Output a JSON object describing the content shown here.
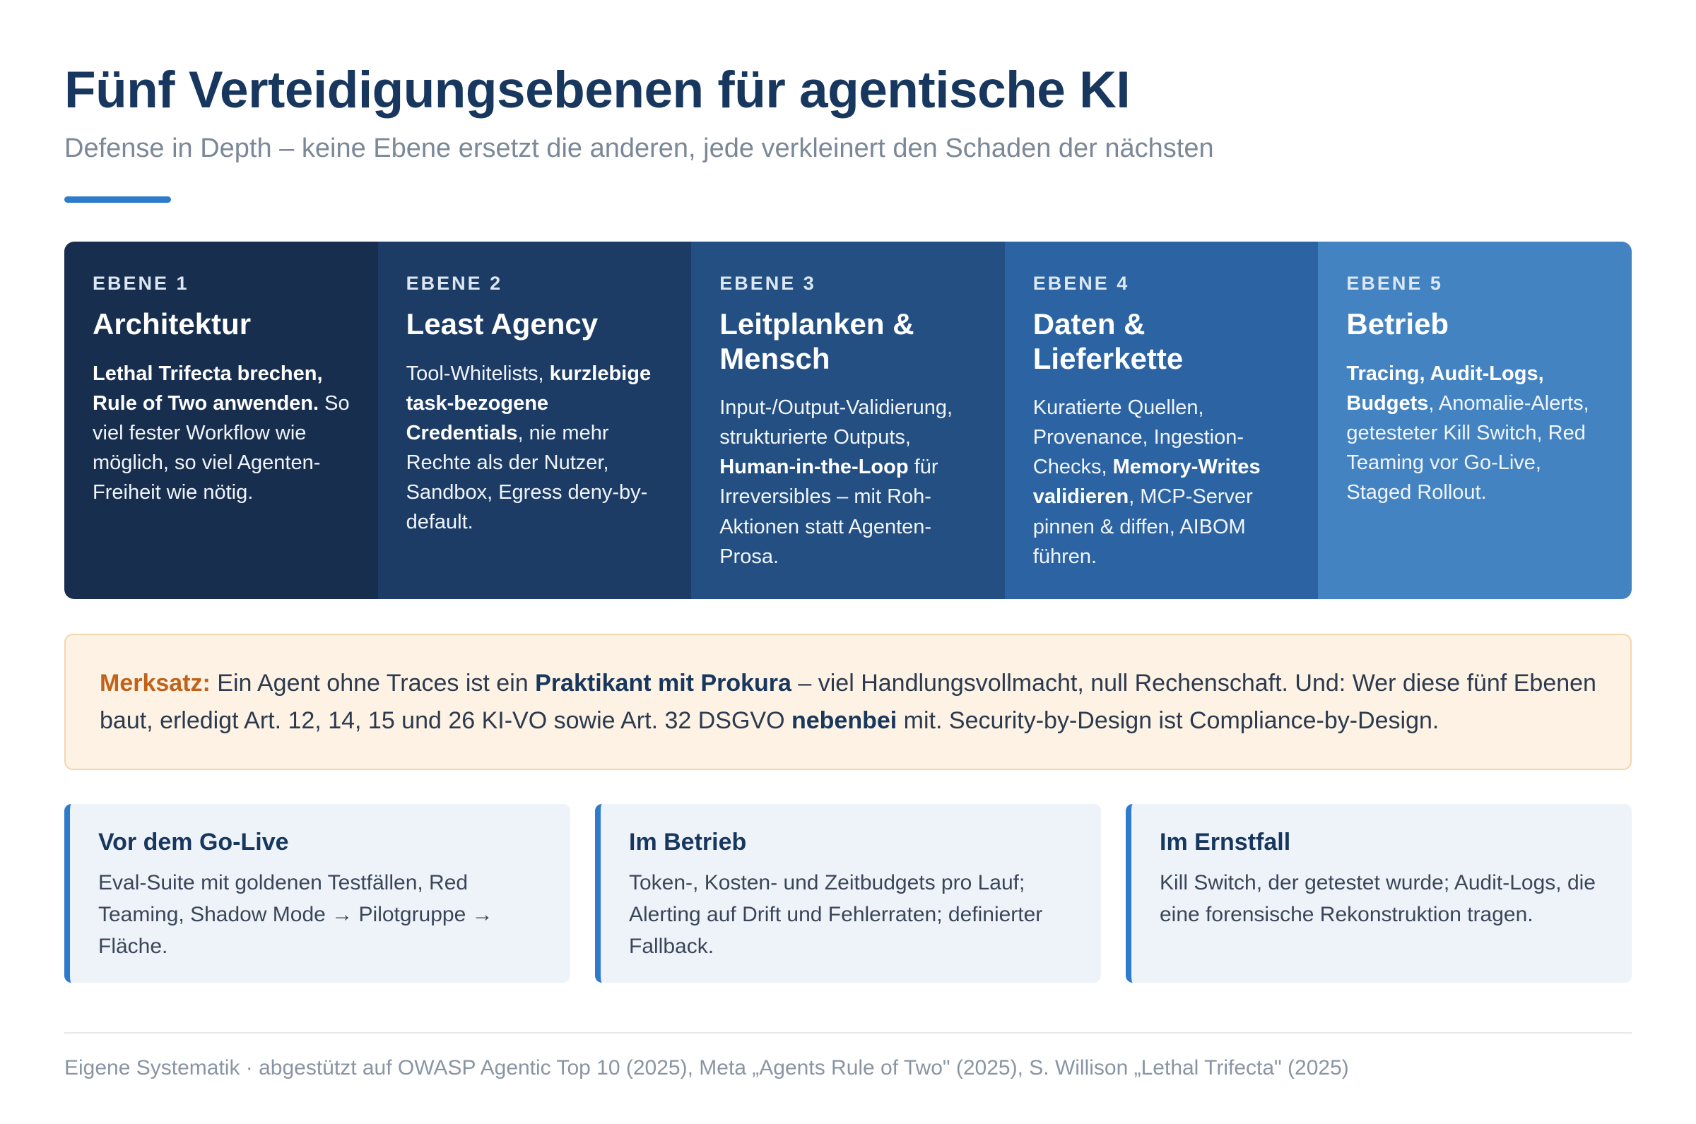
{
  "header": {
    "title": "Fünf Verteidigungsebenen für agentische KI",
    "subtitle": "Defense in Depth – keine Ebene ersetzt die anderen, jede verkleinert den Schaden der nächsten"
  },
  "layers": [
    {
      "kicker": "EBENE 1",
      "title": "Architektur",
      "text": [
        {
          "t": "Lethal Trifecta brechen, Rule of Two anwenden.",
          "b": true
        },
        {
          "t": " So viel fester Workflow wie möglich, so viel Agenten-Freiheit wie nötig.",
          "b": false
        }
      ]
    },
    {
      "kicker": "EBENE 2",
      "title": "Least Agency",
      "text": [
        {
          "t": "Tool-Whitelists, ",
          "b": false
        },
        {
          "t": "kurzlebige task-bezogene Credentials",
          "b": true
        },
        {
          "t": ", nie mehr Rechte als der Nutzer, Sandbox, Egress deny-by-default.",
          "b": false
        }
      ]
    },
    {
      "kicker": "EBENE 3",
      "title": "Leitplanken & Mensch",
      "text": [
        {
          "t": "Input-/Output-Validierung, strukturierte Outputs, ",
          "b": false
        },
        {
          "t": "Human-in-the-Loop",
          "b": true
        },
        {
          "t": " für Irreversibles – mit Roh-Aktionen statt Agenten-Prosa.",
          "b": false
        }
      ]
    },
    {
      "kicker": "EBENE 4",
      "title": "Daten & Lieferkette",
      "text": [
        {
          "t": "Kuratierte Quellen, Provenance, Ingestion-Checks, ",
          "b": false
        },
        {
          "t": "Memory-Writes validieren",
          "b": true
        },
        {
          "t": ", MCP-Server pinnen & diffen, AIBOM führen.",
          "b": false
        }
      ]
    },
    {
      "kicker": "EBENE 5",
      "title": "Betrieb",
      "text": [
        {
          "t": "Tracing, Audit-Logs, Budgets",
          "b": true
        },
        {
          "t": ", Anomalie-Alerts, getesteter Kill Switch, Red Teaming vor Go-Live, Staged Rollout.",
          "b": false
        }
      ]
    }
  ],
  "merksatz": {
    "lead": "Merksatz:",
    "parts": [
      {
        "t": " Ein Agent ohne Traces ist ein ",
        "b": false
      },
      {
        "t": "Praktikant mit Prokura",
        "b": true
      },
      {
        "t": " – viel Handlungsvollmacht, null Rechenschaft. Und: Wer diese fünf Ebenen baut, erledigt Art. 12, 14, 15 und 26 KI-VO sowie Art. 32 DSGVO ",
        "b": false
      },
      {
        "t": "nebenbei",
        "b": true
      },
      {
        "t": " mit. Security-by-Design ist Compliance-by-Design.",
        "b": false
      }
    ]
  },
  "cards": [
    {
      "title": "Vor dem Go-Live",
      "text": "Eval-Suite mit goldenen Testfällen, Red Teaming, Shadow Mode → Pilotgruppe → Fläche."
    },
    {
      "title": "Im Betrieb",
      "text": "Token-, Kosten- und Zeitbudgets pro Lauf; Alerting auf Drift und Fehlerraten; definierter Fallback."
    },
    {
      "title": "Im Ernstfall",
      "text": "Kill Switch, der getestet wurde; Audit-Logs, die eine forensische Rekonstruktion tragen."
    }
  ],
  "footer": {
    "source": "Eigene Systematik · abgestützt auf OWASP Agentic Top 10 (2025), Meta „Agents Rule of Two\" (2025), S. Willison „Lethal Trifecta\" (2025)"
  }
}
